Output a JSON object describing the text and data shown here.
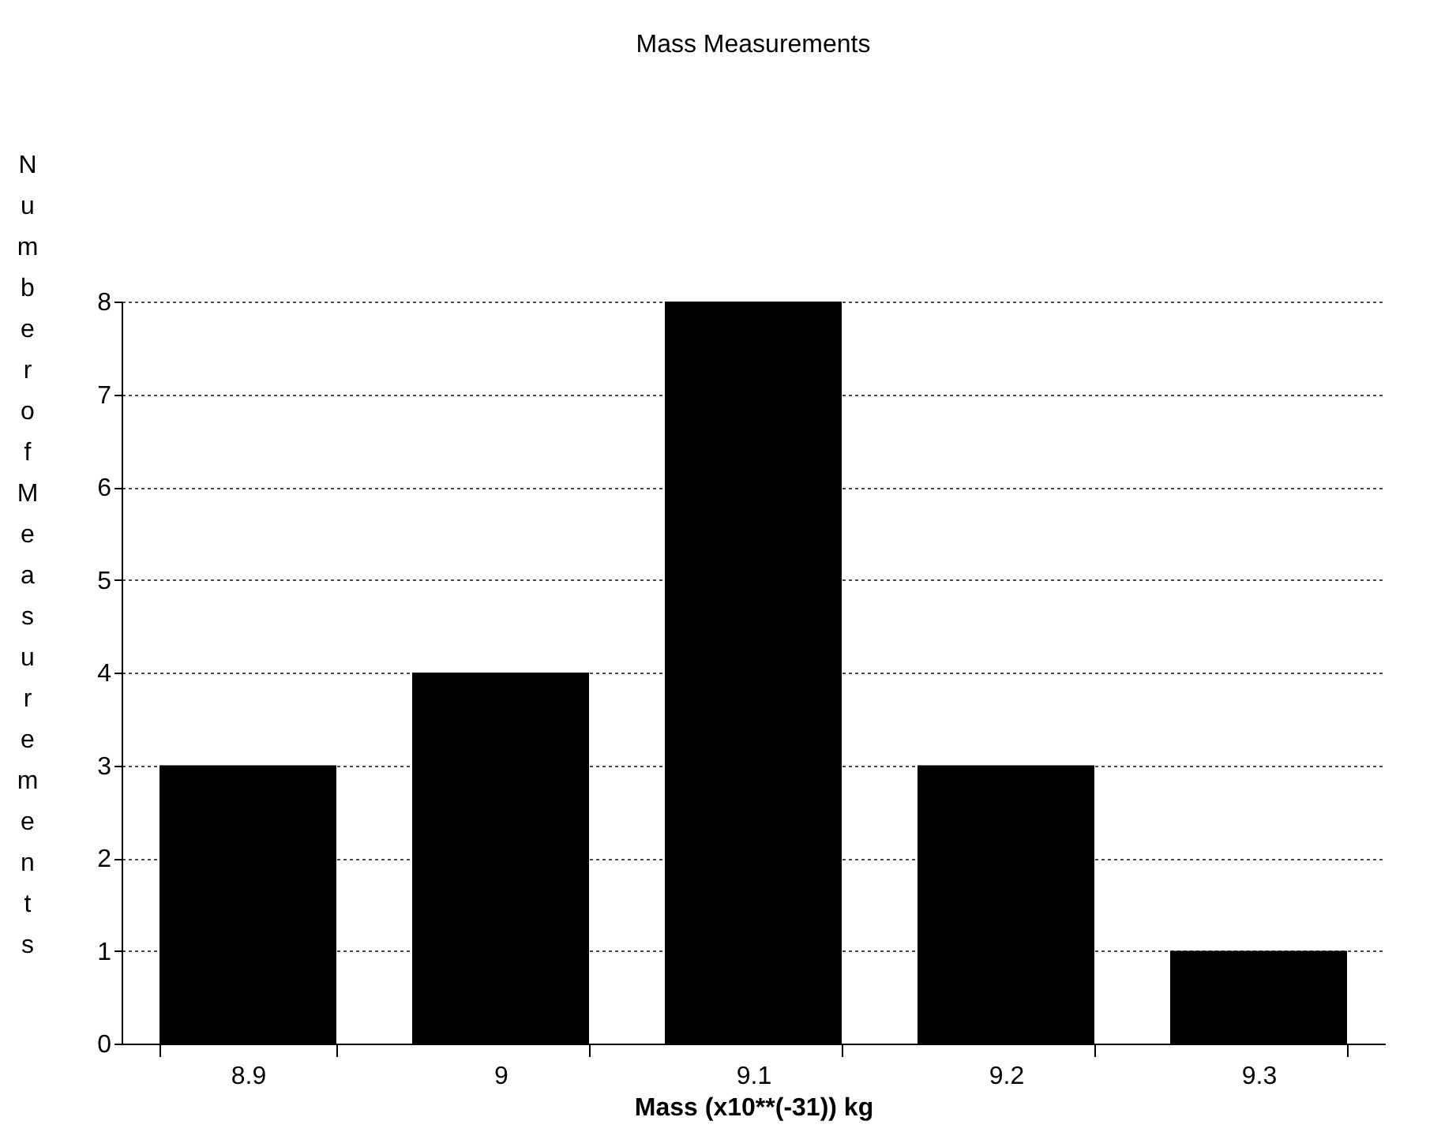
{
  "chart_data": {
    "type": "bar",
    "title": "Mass Measurements",
    "xlabel": "Mass (x10**(-31)) kg",
    "ylabel": "Number of Measurements",
    "categories": [
      "8.9",
      "9",
      "9.1",
      "9.2",
      "9.3"
    ],
    "values": [
      3,
      4,
      8,
      3,
      1
    ],
    "color": "#000000",
    "ylim": [
      0,
      8
    ],
    "yticks": [
      0,
      1,
      2,
      3,
      4,
      5,
      6,
      7,
      8
    ],
    "grid": "y"
  }
}
